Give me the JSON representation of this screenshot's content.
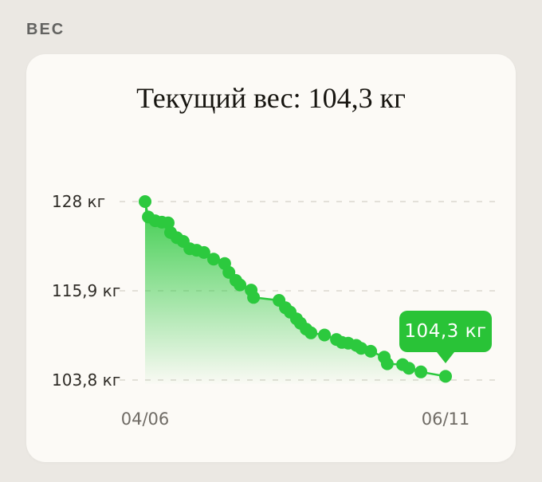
{
  "page": {
    "background": "#ebe8e3"
  },
  "header": {
    "title": "ВЕС"
  },
  "card": {
    "background": "#fcfaf6",
    "title": "Текущий вес: 104,3 кг"
  },
  "tooltip": {
    "label": "104,3 кг",
    "background": "#29c337",
    "text_color": "#ffffff"
  },
  "chart_data": {
    "type": "line",
    "title": "Текущий вес: 104,3 кг",
    "ylabel": "кг",
    "ylim": [
      103.8,
      128
    ],
    "grid": "dashed-horizontal",
    "legend": "none",
    "accent_color": "#2cc93e",
    "fill_style": "vertical-gradient-green-to-transparent",
    "y_ticks": [
      {
        "value": 128,
        "label": "128 кг"
      },
      {
        "value": 115.9,
        "label": "115,9 кг"
      },
      {
        "value": 103.8,
        "label": "103,8 кг"
      }
    ],
    "x_ticks": [
      {
        "frac": 0,
        "label": "04/06"
      },
      {
        "frac": 1,
        "label": "06/11"
      }
    ],
    "last_point_label": "104,3 кг",
    "series": [
      {
        "name": "Вес",
        "points": [
          {
            "x": 0.0,
            "kg": 128.0
          },
          {
            "x": 0.011,
            "kg": 125.9
          },
          {
            "x": 0.034,
            "kg": 125.4
          },
          {
            "x": 0.056,
            "kg": 125.2
          },
          {
            "x": 0.077,
            "kg": 125.1
          },
          {
            "x": 0.085,
            "kg": 123.8
          },
          {
            "x": 0.106,
            "kg": 123.1
          },
          {
            "x": 0.127,
            "kg": 122.6
          },
          {
            "x": 0.149,
            "kg": 121.6
          },
          {
            "x": 0.172,
            "kg": 121.4
          },
          {
            "x": 0.196,
            "kg": 121.1
          },
          {
            "x": 0.228,
            "kg": 120.2
          },
          {
            "x": 0.265,
            "kg": 119.6
          },
          {
            "x": 0.279,
            "kg": 118.4
          },
          {
            "x": 0.302,
            "kg": 117.3
          },
          {
            "x": 0.316,
            "kg": 116.7
          },
          {
            "x": 0.353,
            "kg": 116.0
          },
          {
            "x": 0.361,
            "kg": 115.0
          },
          {
            "x": 0.446,
            "kg": 114.6
          },
          {
            "x": 0.467,
            "kg": 113.6
          },
          {
            "x": 0.483,
            "kg": 113.0
          },
          {
            "x": 0.504,
            "kg": 112.1
          },
          {
            "x": 0.517,
            "kg": 111.5
          },
          {
            "x": 0.536,
            "kg": 110.7
          },
          {
            "x": 0.552,
            "kg": 110.2
          },
          {
            "x": 0.597,
            "kg": 109.9
          },
          {
            "x": 0.637,
            "kg": 109.3
          },
          {
            "x": 0.655,
            "kg": 108.9
          },
          {
            "x": 0.676,
            "kg": 108.8
          },
          {
            "x": 0.703,
            "kg": 108.5
          },
          {
            "x": 0.719,
            "kg": 108.1
          },
          {
            "x": 0.751,
            "kg": 107.7
          },
          {
            "x": 0.796,
            "kg": 106.9
          },
          {
            "x": 0.806,
            "kg": 106.0
          },
          {
            "x": 0.857,
            "kg": 105.9
          },
          {
            "x": 0.878,
            "kg": 105.4
          },
          {
            "x": 0.918,
            "kg": 104.9
          },
          {
            "x": 1.0,
            "kg": 104.3
          }
        ]
      }
    ]
  }
}
